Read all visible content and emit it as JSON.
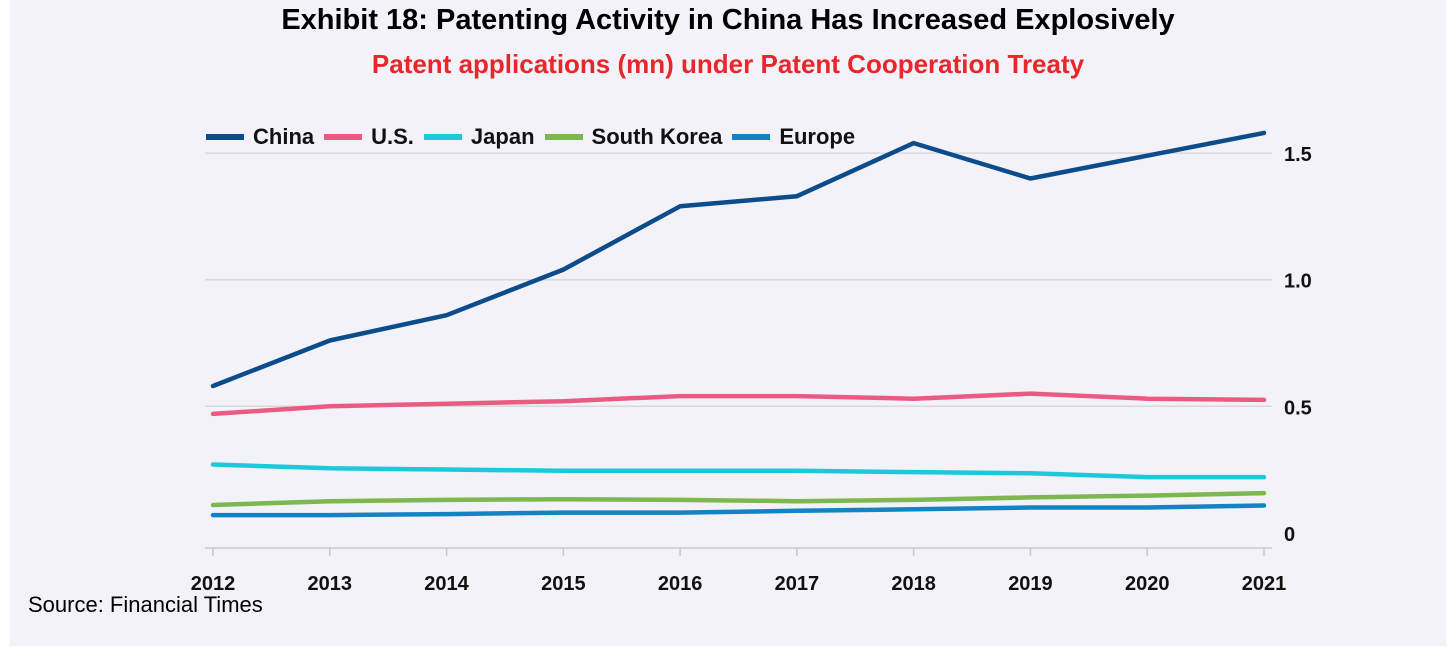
{
  "title": "Exhibit 18: Patenting Activity in China Has Increased Explosively",
  "subtitle": "Patent applications (mn) under Patent Cooperation Treaty",
  "source": "Source: Financial Times",
  "chart_data": {
    "type": "line",
    "x": [
      "2012",
      "2013",
      "2014",
      "2015",
      "2016",
      "2017",
      "2018",
      "2019",
      "2020",
      "2021"
    ],
    "y_ticks": [
      {
        "label": "0",
        "value": 0
      },
      {
        "label": "0.5",
        "value": 0.5
      },
      {
        "label": "1.0",
        "value": 1.0
      },
      {
        "label": "1.5",
        "value": 1.5
      }
    ],
    "ylim": [
      -0.06,
      1.56
    ],
    "y_axis_side": "right",
    "legend_position": "top-left",
    "grid": true,
    "series": [
      {
        "name": "China",
        "color": "#0c4c8a",
        "values": [
          0.58,
          0.76,
          0.86,
          1.04,
          1.29,
          1.33,
          1.54,
          1.4,
          1.49,
          1.58
        ]
      },
      {
        "name": "U.S.",
        "color": "#ea5b82",
        "values": [
          0.47,
          0.5,
          0.51,
          0.52,
          0.54,
          0.54,
          0.53,
          0.55,
          0.53,
          0.525
        ]
      },
      {
        "name": "Japan",
        "color": "#1ec8dc",
        "values": [
          0.27,
          0.255,
          0.25,
          0.245,
          0.245,
          0.245,
          0.24,
          0.235,
          0.22,
          0.22
        ]
      },
      {
        "name": "South Korea",
        "color": "#7cb74f",
        "values": [
          0.11,
          0.125,
          0.13,
          0.133,
          0.13,
          0.125,
          0.13,
          0.14,
          0.147,
          0.157
        ]
      },
      {
        "name": "Europe",
        "color": "#1383c4",
        "values": [
          0.07,
          0.07,
          0.074,
          0.08,
          0.08,
          0.087,
          0.093,
          0.1,
          0.1,
          0.108
        ]
      }
    ]
  }
}
